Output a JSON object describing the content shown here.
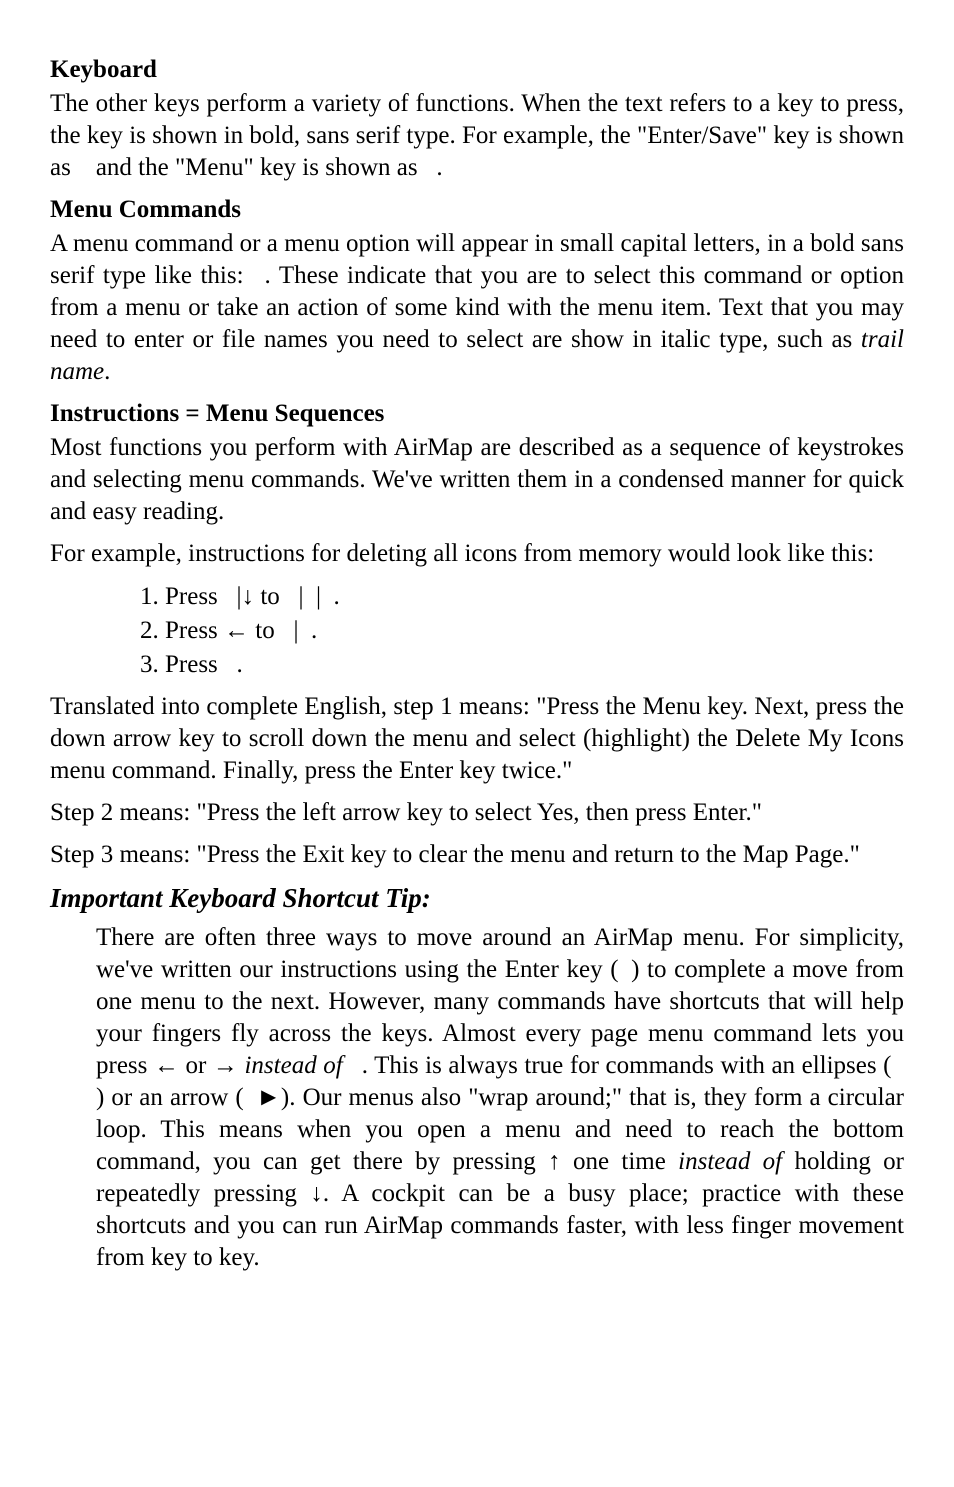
{
  "sections": {
    "keyboard": {
      "heading": "Keyboard",
      "para": "The other keys perform a variety of functions. When the text refers to a key to press, the key is shown in bold, sans serif type. For example, the \"Enter/Save\" key is shown as ",
      "mid": " and the \"Menu\" key is shown as ",
      "end": "."
    },
    "menu_commands": {
      "heading": "Menu Commands",
      "para_a": "A menu command or a menu option will appear in small capital letters, in a bold sans serif type like this: ",
      "para_b": ". These indicate that you are to select this command or option from a menu or take an action of some kind with the menu item. Text that you may need to enter or file names you need to select are show in italic type, such as ",
      "trail": "trail name",
      "para_c": "."
    },
    "instructions": {
      "heading": "Instructions = Menu Sequences",
      "p1": "Most functions you perform with AirMap are described as a sequence of keystrokes and selecting menu commands. We've written them in a condensed manner for quick and easy reading.",
      "p2": "For example, instructions for deleting all icons from memory would look like this:",
      "steps": {
        "s1a": "1. Press ",
        "s1b": "|",
        "s1c": "↓ to ",
        "s1d": "|",
        "s1e": "|",
        "s1f": ".",
        "s2a": "2. Press ← to ",
        "s2b": "|",
        "s2c": ".",
        "s3a": "3. Press ",
        "s3b": "."
      },
      "p3": "Translated into complete English, step 1 means: \"Press the Menu key. Next, press the down arrow key to scroll down the menu and select (highlight) the Delete My Icons menu command. Finally, press the Enter key twice.\"",
      "p4": "Step 2 means: \"Press the left arrow key to select Yes, then press Enter.\"",
      "p5": "Step 3 means: \"Press the Exit key to clear the menu and return to the Map Page.\""
    },
    "tip": {
      "heading": "Important Keyboard Shortcut Tip:",
      "t1": "There are often three ways to move around an AirMap menu. For simplicity, we've written our instructions using the Enter key (",
      "t2": ") to complete a move from one menu to the next. However, many commands have shortcuts that will help your fingers fly across the keys. Almost every page menu command lets you press ← or → ",
      "t3": "instead of ",
      "t4": ". This is always true for commands with an ellipses (",
      "t5": ") or an arrow (",
      "t6": "►). Our menus also \"wrap around;\" that is, they form a circular loop. This means when you open a menu and need to reach the bottom command, you can get there by pressing ↑ one time ",
      "t7": "instead of",
      "t8": " holding or repeatedly pressing ↓. A cockpit can be a busy place; practice with these shortcuts and you can run AirMap commands faster, with less finger movement from key to key."
    }
  },
  "placeholders": {
    "key_ent": "        ",
    "key_menu": "          ",
    "menu_cmd": "                    ",
    "step_key_menu": "         ",
    "step_cmd": "                         ",
    "step_ent": "      ",
    "step_yes": "      ",
    "step_exit": "       ",
    "tip_ent": "      ",
    "tip_ellipses": "              ",
    "tip_arrow": "                  "
  }
}
